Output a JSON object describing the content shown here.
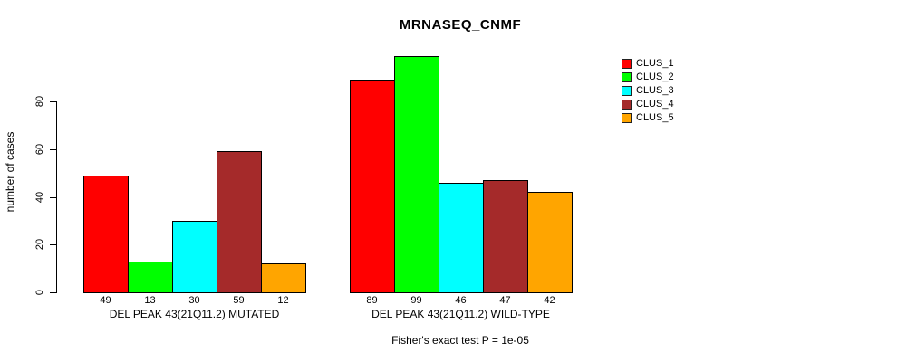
{
  "title": "MRNASEQ_CNMF",
  "chart_data": {
    "type": "bar",
    "title": "MRNASEQ_CNMF",
    "xlabel": "",
    "ylabel": "number of cases",
    "ylim": [
      0,
      100
    ],
    "yticks": [
      0,
      20,
      40,
      60,
      80
    ],
    "grid": false,
    "legend_position": "top-right-outside-plot",
    "bar_value_labels_shown": true,
    "categories": [
      "DEL PEAK 43(21Q11.2) MUTATED",
      "DEL PEAK 43(21Q11.2) WILD-TYPE"
    ],
    "series": [
      {
        "name": "CLUS_1",
        "color": "#FF0000",
        "values": [
          49,
          89
        ]
      },
      {
        "name": "CLUS_2",
        "color": "#00FF00",
        "values": [
          13,
          99
        ]
      },
      {
        "name": "CLUS_3",
        "color": "#00FFFF",
        "values": [
          30,
          46
        ]
      },
      {
        "name": "CLUS_4",
        "color": "#A52A2A",
        "values": [
          59,
          47
        ]
      },
      {
        "name": "CLUS_5",
        "color": "#FFA500",
        "values": [
          12,
          42
        ]
      }
    ],
    "annotation": "Fisher's exact test P = 1e-05"
  },
  "colors": {
    "background": "#FFFFFF",
    "axis": "#000000",
    "text": "#000000",
    "bar_border": "#000000"
  }
}
